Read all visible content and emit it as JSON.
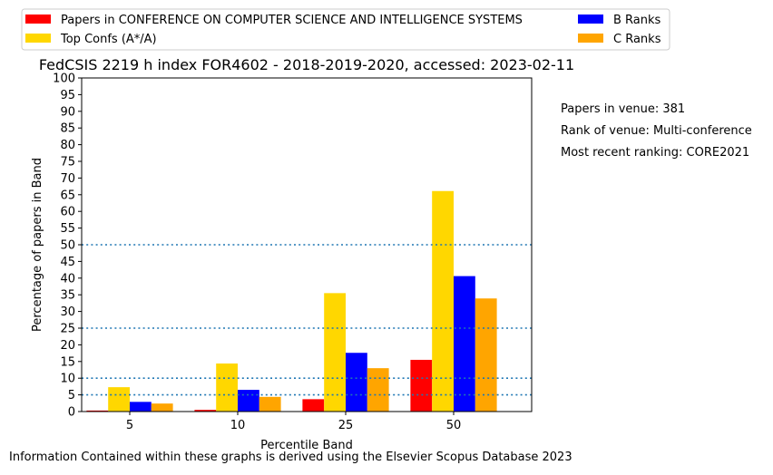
{
  "chart_data": {
    "type": "bar",
    "title": "FedCSIS 2219 h index FOR4602 - 2018-2019-2020, accessed: 2023-02-11",
    "xlabel": "Percentile Band",
    "ylabel": "Percentage of papers in Band",
    "categories": [
      "5",
      "10",
      "25",
      "50"
    ],
    "ylim": [
      0,
      100
    ],
    "yticks": [
      "0",
      "5",
      "10",
      "15",
      "20",
      "25",
      "30",
      "35",
      "40",
      "45",
      "50",
      "55",
      "60",
      "65",
      "70",
      "75",
      "80",
      "85",
      "90",
      "95",
      "100"
    ],
    "series": [
      {
        "name": "Papers in CONFERENCE ON COMPUTER SCIENCE AND INTELLIGENCE SYSTEMS",
        "color": "#ff0000",
        "values": [
          0.3,
          0.5,
          3.7,
          15.5
        ]
      },
      {
        "name": "Top Confs (A*/A)",
        "color": "#ffd700",
        "values": [
          7.3,
          14.4,
          35.5,
          66.1
        ]
      },
      {
        "name": "B Ranks",
        "color": "#0000ff",
        "values": [
          2.9,
          6.5,
          17.6,
          40.6
        ]
      },
      {
        "name": "C Ranks",
        "color": "#ffa500",
        "values": [
          2.4,
          4.4,
          13.0,
          33.9
        ]
      }
    ],
    "reference_lines": [
      5,
      10,
      25,
      50
    ],
    "reference_line_color": "#1f77b4",
    "legend_placement": "top"
  },
  "side_notes": [
    "Papers in venue: 381",
    "Rank of venue: Multi-conference",
    "Most recent ranking: CORE2021"
  ],
  "footer": "Information Contained within these graphs is derived using the Elsevier Scopus Database 2023"
}
